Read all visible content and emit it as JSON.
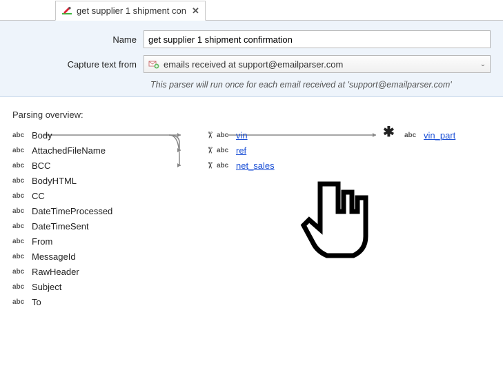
{
  "tab": {
    "label": "get supplier 1 shipment con",
    "close": "✕"
  },
  "form": {
    "name_label": "Name",
    "name_value": "get supplier 1 shipment confirmation",
    "capture_label": "Capture text from",
    "capture_value": "emails received at support@emailparser.com",
    "hint": "This parser will run once for each email received at 'support@emailparser.com'"
  },
  "overview": {
    "title": "Parsing overview:",
    "abc": "abc",
    "source_fields": [
      "Body",
      "AttachedFileName",
      "BCC",
      "BodyHTML",
      "CC",
      "DateTimeProcessed",
      "DateTimeSent",
      "From",
      "MessageId",
      "RawHeader",
      "Subject",
      "To"
    ],
    "parsed_fields": [
      "vin",
      "ref",
      "net_sales"
    ],
    "output_field": "vin_part"
  }
}
